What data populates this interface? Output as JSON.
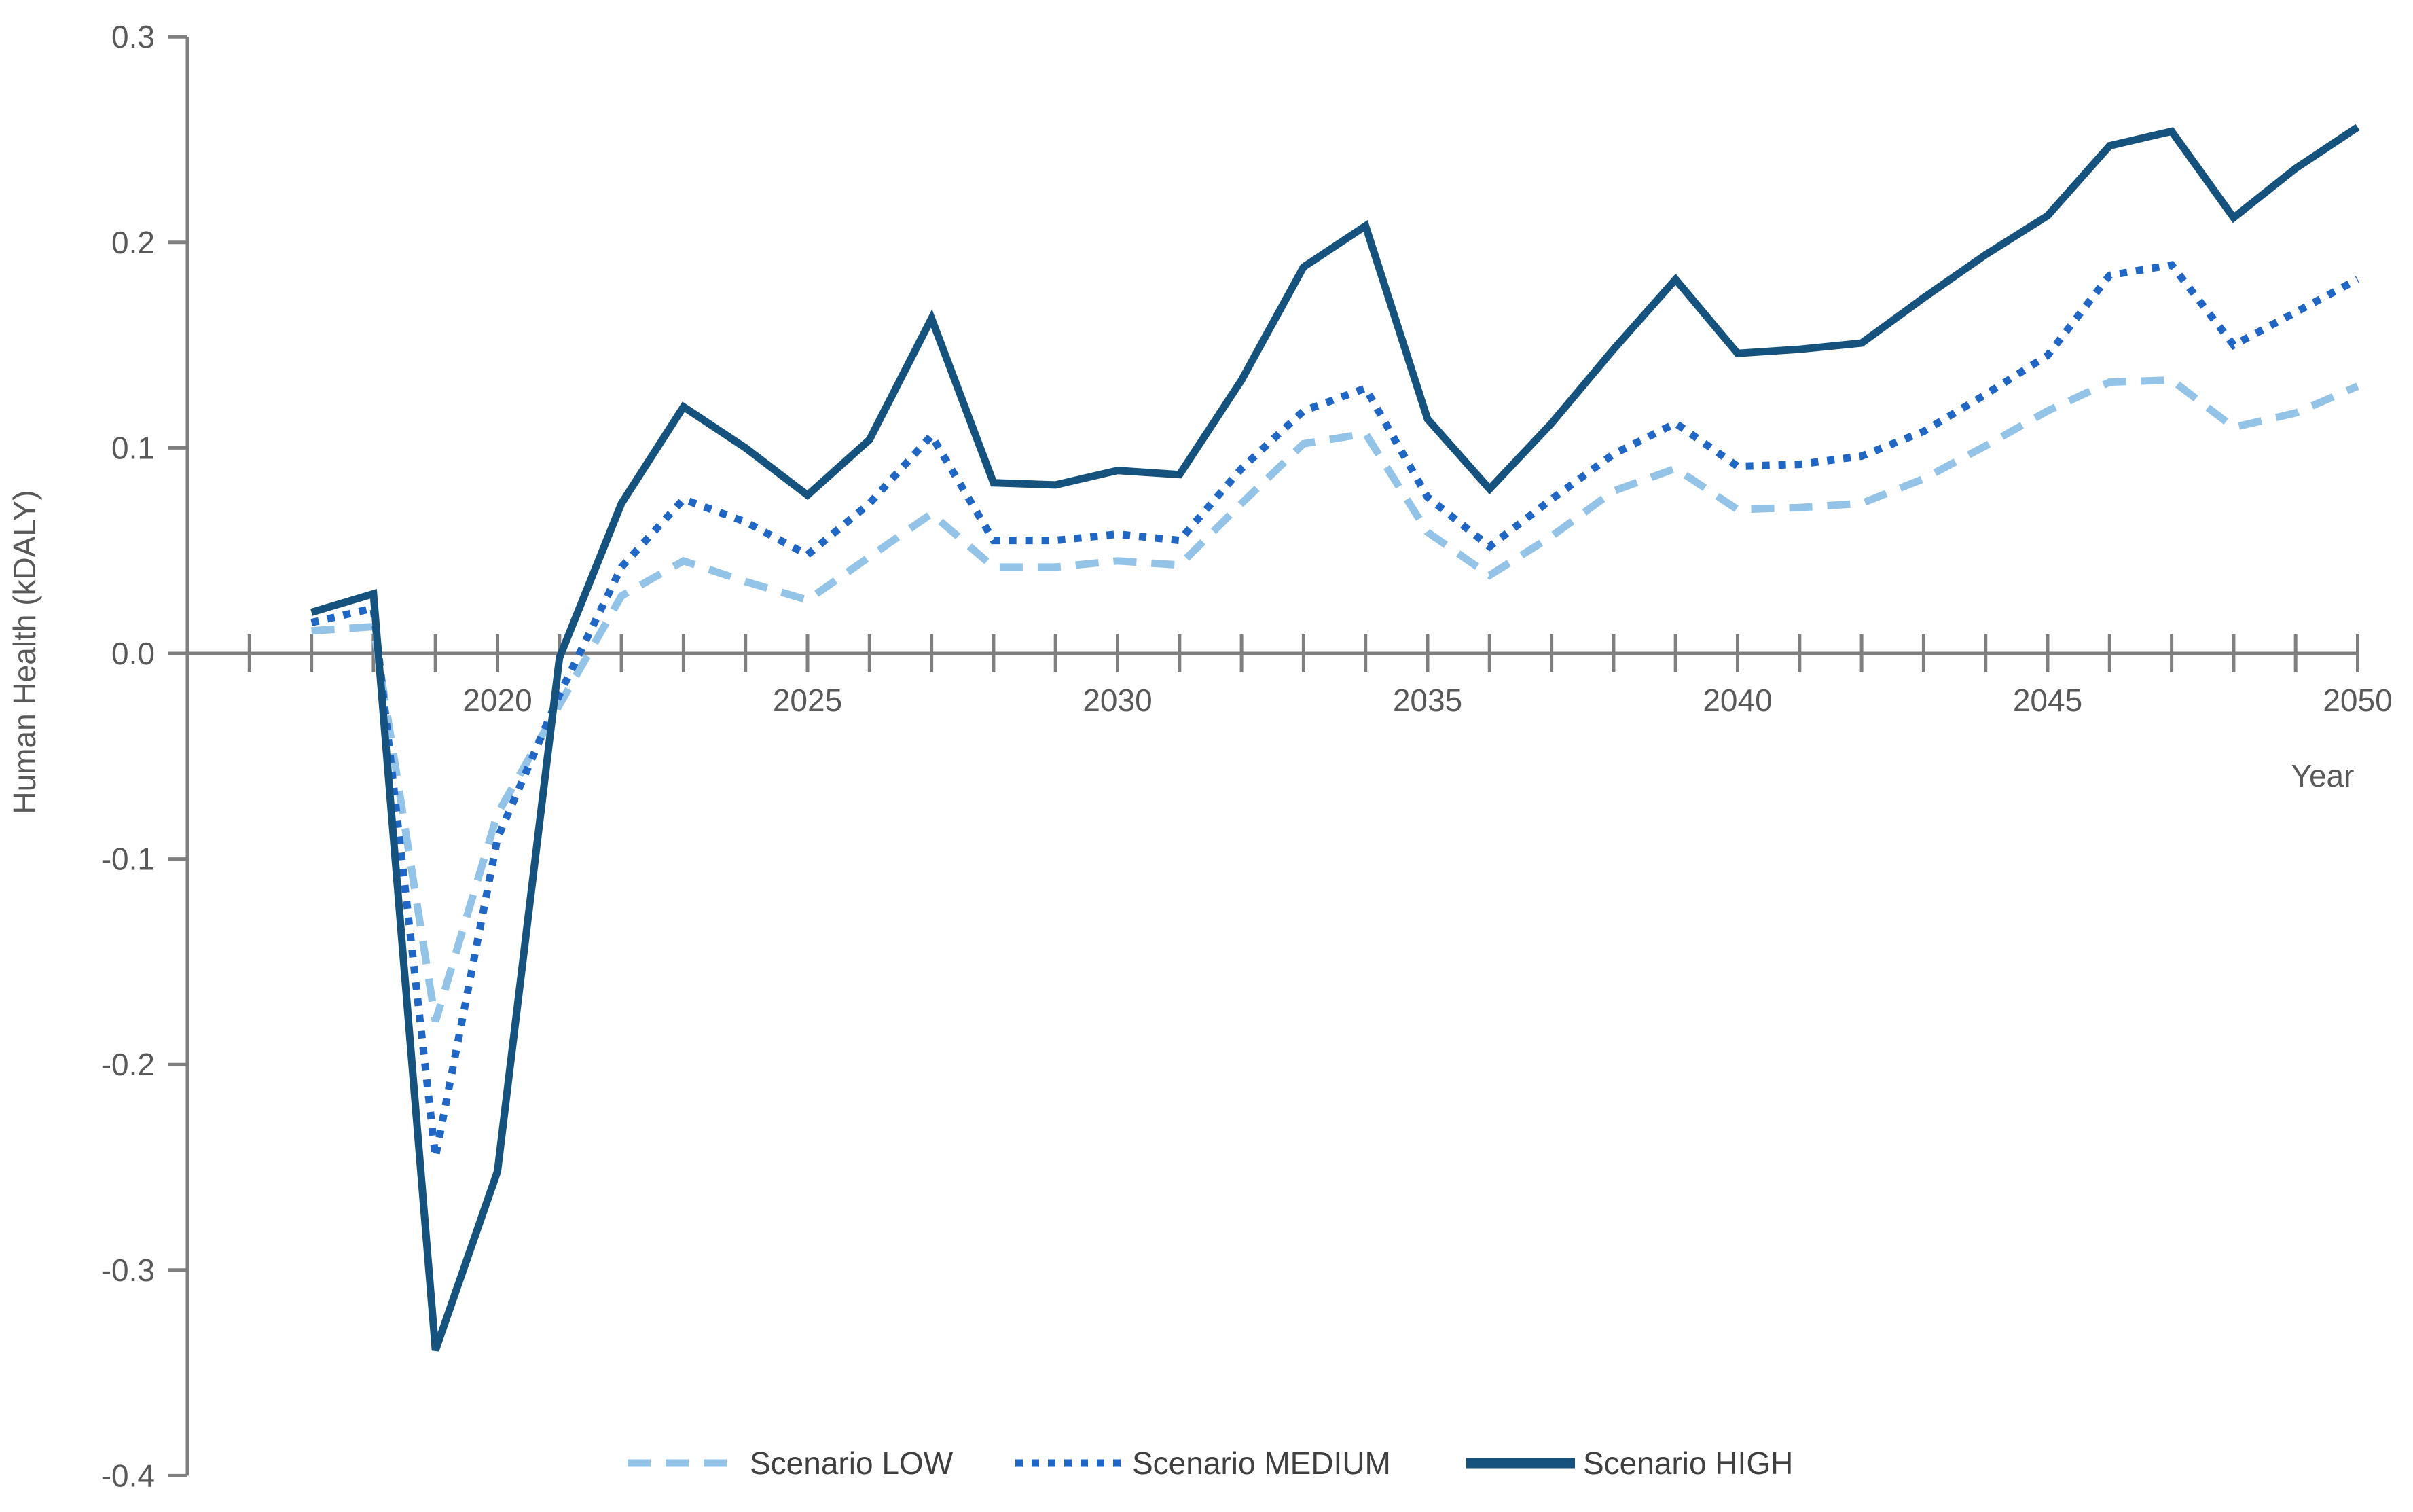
{
  "chart_data": {
    "type": "line",
    "title": "",
    "xlabel": "Year",
    "ylabel": "Human Health (kDALY)",
    "grid": false,
    "background_color": "#ffffff",
    "axis_color": "#7f7f7f",
    "tick_text_color": "#595959",
    "legend_text_color": "#3f3f3f",
    "legend_position": "bottom-center",
    "xlim": [
      2015,
      2050.9
    ],
    "ylim": [
      -0.4,
      0.3
    ],
    "yticks": [
      0.3,
      0.2,
      0.1,
      0.0,
      -0.1,
      -0.2,
      -0.3,
      -0.4
    ],
    "ytick_labels": [
      "0.3",
      "0.2",
      "0.1",
      "0.0",
      "-0.1",
      "-0.2",
      "-0.3",
      "-0.4"
    ],
    "x_minor_ticks": {
      "from": 2016,
      "to": 2050,
      "step": 1
    },
    "xticks_labeled": [
      2020,
      2025,
      2030,
      2035,
      2040,
      2045,
      2050
    ],
    "xtick_labels": [
      "2020",
      "2025",
      "2030",
      "2035",
      "2040",
      "2045",
      "2050"
    ],
    "x": [
      2017,
      2018,
      2019,
      2020,
      2021,
      2022,
      2023,
      2024,
      2025,
      2026,
      2027,
      2028,
      2029,
      2030,
      2031,
      2032,
      2033,
      2034,
      2035,
      2036,
      2037,
      2038,
      2039,
      2040,
      2041,
      2042,
      2043,
      2044,
      2045,
      2046,
      2047,
      2048,
      2049,
      2050
    ],
    "series": [
      {
        "name": "Scenario LOW",
        "style": "dashed",
        "color": "#94c3e8",
        "values": [
          0.011,
          0.013,
          -0.179,
          -0.078,
          -0.025,
          0.028,
          0.045,
          0.035,
          0.026,
          0.047,
          0.068,
          0.042,
          0.042,
          0.045,
          0.043,
          0.073,
          0.102,
          0.107,
          0.059,
          0.038,
          0.057,
          0.079,
          0.09,
          0.07,
          0.071,
          0.073,
          0.085,
          0.101,
          0.118,
          0.132,
          0.133,
          0.11,
          0.117,
          0.13
        ]
      },
      {
        "name": "Scenario MEDIUM",
        "style": "dotted",
        "color": "#2066c5",
        "values": [
          0.015,
          0.022,
          -0.245,
          -0.09,
          -0.02,
          0.042,
          0.075,
          0.064,
          0.048,
          0.073,
          0.106,
          0.055,
          0.055,
          0.058,
          0.055,
          0.09,
          0.118,
          0.129,
          0.076,
          0.052,
          0.075,
          0.097,
          0.112,
          0.091,
          0.092,
          0.096,
          0.108,
          0.126,
          0.145,
          0.184,
          0.189,
          0.15,
          0.166,
          0.182
        ]
      },
      {
        "name": "Scenario HIGH",
        "style": "solid",
        "color": "#15527d",
        "values": [
          0.02,
          0.029,
          -0.339,
          -0.252,
          -0.002,
          0.073,
          0.12,
          0.1,
          0.077,
          0.104,
          0.163,
          0.083,
          0.082,
          0.089,
          0.087,
          0.133,
          0.188,
          0.208,
          0.114,
          0.08,
          0.112,
          0.148,
          0.182,
          0.146,
          0.148,
          0.151,
          0.173,
          0.194,
          0.213,
          0.247,
          0.254,
          0.212,
          0.236,
          0.256
        ]
      }
    ]
  }
}
